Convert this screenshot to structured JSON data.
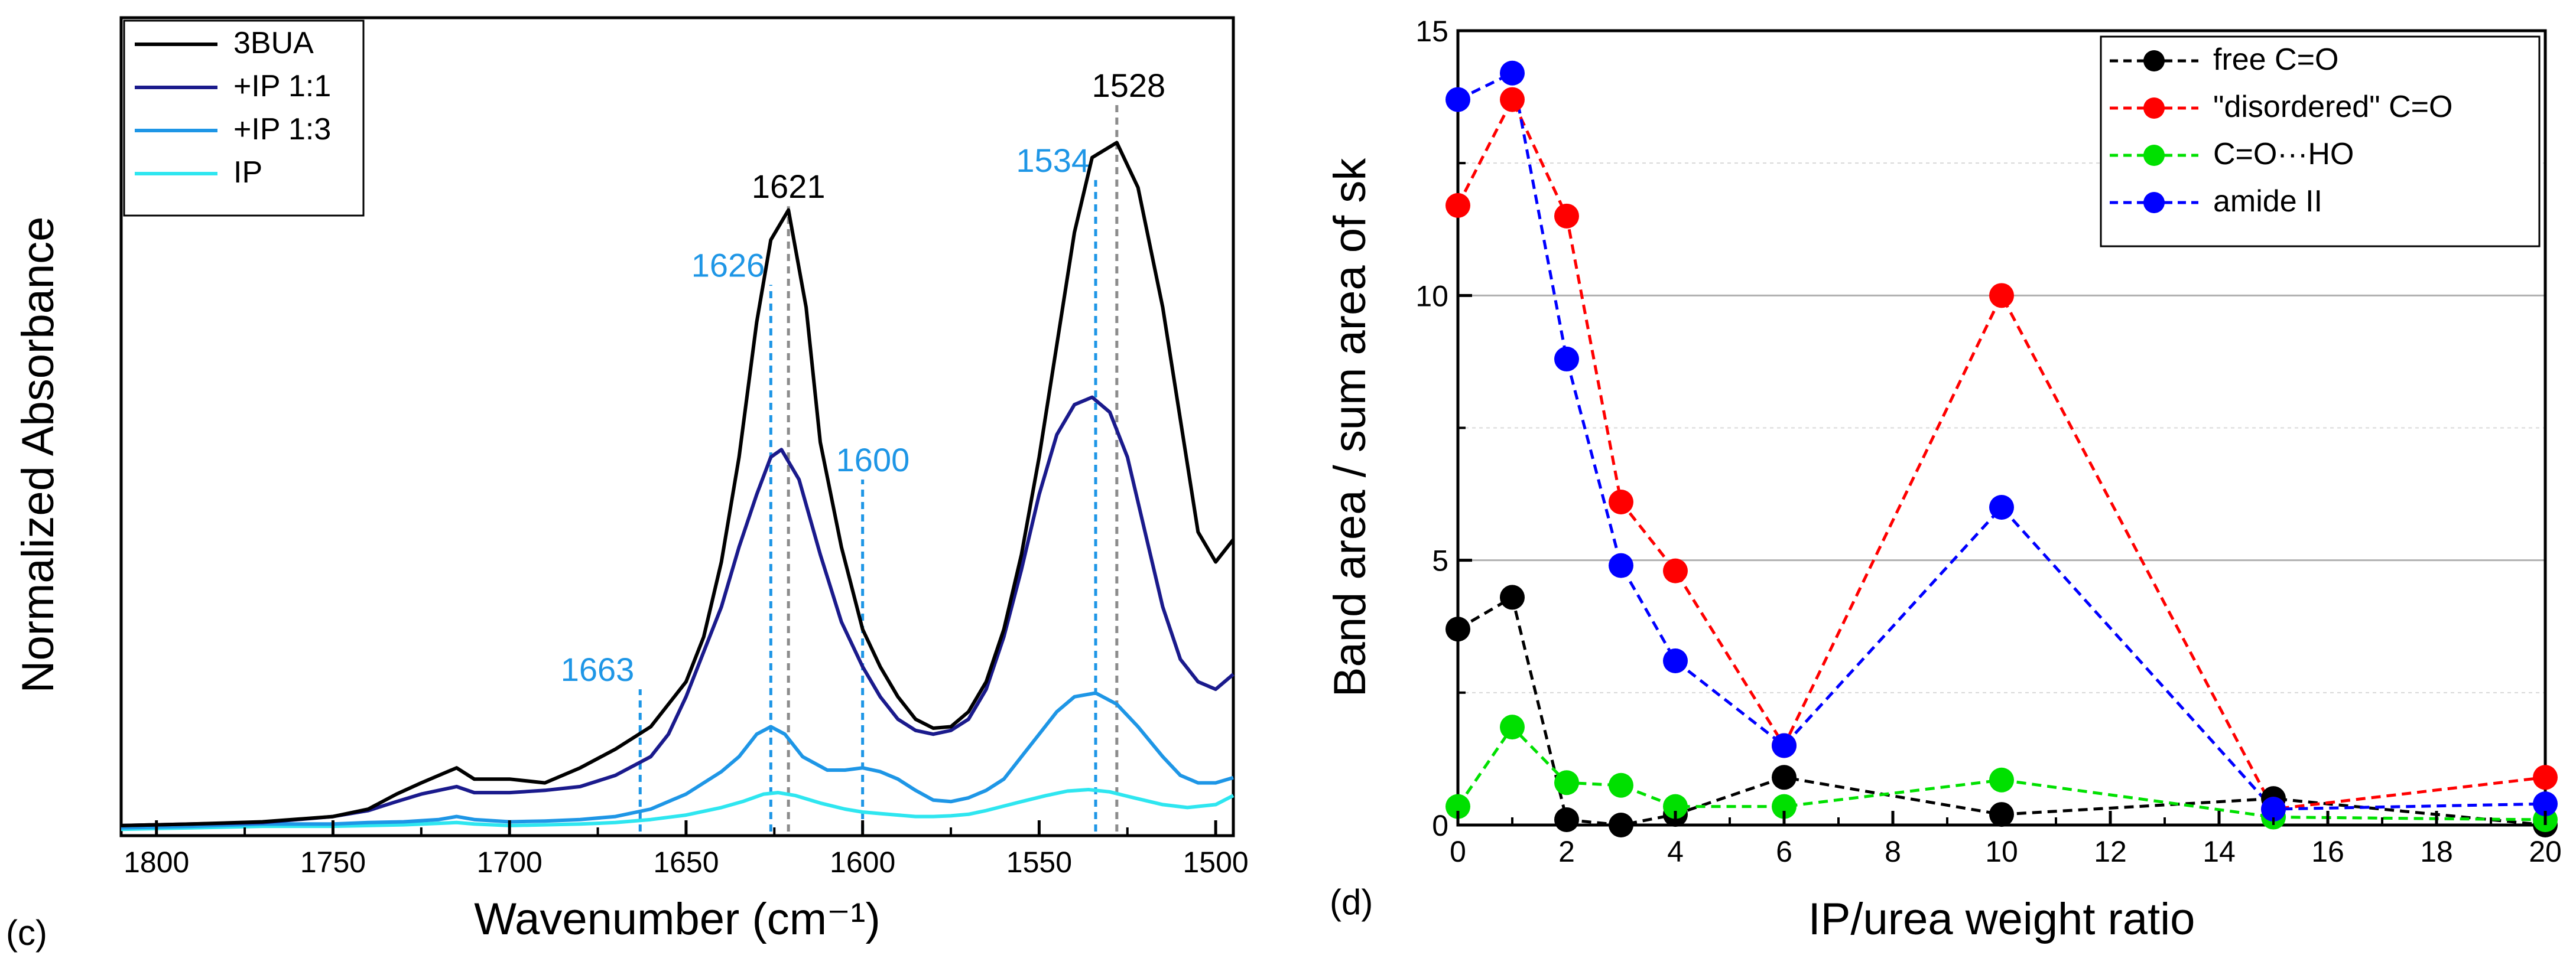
{
  "chart_data": [
    {
      "type": "line",
      "panel_label": "(c)",
      "xlabel": "Wavenumber (cm⁻¹)",
      "ylabel": "Normalized Absorbance",
      "xlim": [
        1810,
        1495
      ],
      "ylim": [
        0,
        1.0
      ],
      "x_ticks": [
        1800,
        1750,
        1700,
        1650,
        1600,
        1550,
        1500
      ],
      "x_tick_labels": [
        "1800",
        "1750",
        "1700",
        "1650",
        "1600",
        "1550",
        "1500"
      ],
      "legend": {
        "position": "top-left",
        "entries": [
          "3BUA",
          "+IP 1:1",
          "+IP 1:3",
          "IP"
        ]
      },
      "series": [
        {
          "name": "3BUA",
          "color": "#000000",
          "points": [
            [
              1810,
              0.008
            ],
            [
              1790,
              0.01
            ],
            [
              1770,
              0.013
            ],
            [
              1750,
              0.02
            ],
            [
              1740,
              0.03
            ],
            [
              1732,
              0.05
            ],
            [
              1725,
              0.065
            ],
            [
              1720,
              0.075
            ],
            [
              1715,
              0.085
            ],
            [
              1710,
              0.07
            ],
            [
              1700,
              0.07
            ],
            [
              1690,
              0.065
            ],
            [
              1680,
              0.085
            ],
            [
              1670,
              0.11
            ],
            [
              1660,
              0.14
            ],
            [
              1650,
              0.2
            ],
            [
              1645,
              0.26
            ],
            [
              1640,
              0.36
            ],
            [
              1635,
              0.5
            ],
            [
              1630,
              0.68
            ],
            [
              1626,
              0.79
            ],
            [
              1621,
              0.83
            ],
            [
              1616,
              0.7
            ],
            [
              1612,
              0.52
            ],
            [
              1606,
              0.38
            ],
            [
              1600,
              0.27
            ],
            [
              1595,
              0.22
            ],
            [
              1590,
              0.18
            ],
            [
              1585,
              0.15
            ],
            [
              1580,
              0.138
            ],
            [
              1575,
              0.14
            ],
            [
              1570,
              0.16
            ],
            [
              1565,
              0.2
            ],
            [
              1560,
              0.27
            ],
            [
              1555,
              0.37
            ],
            [
              1550,
              0.5
            ],
            [
              1545,
              0.65
            ],
            [
              1540,
              0.8
            ],
            [
              1535,
              0.9
            ],
            [
              1528,
              0.92
            ],
            [
              1522,
              0.86
            ],
            [
              1515,
              0.7
            ],
            [
              1510,
              0.55
            ],
            [
              1505,
              0.4
            ],
            [
              1500,
              0.36
            ],
            [
              1495,
              0.39
            ]
          ]
        },
        {
          "name": "+IP 1:1",
          "color": "#1a1a8c",
          "points": [
            [
              1810,
              0.008
            ],
            [
              1790,
              0.01
            ],
            [
              1770,
              0.012
            ],
            [
              1750,
              0.02
            ],
            [
              1740,
              0.028
            ],
            [
              1732,
              0.04
            ],
            [
              1725,
              0.05
            ],
            [
              1715,
              0.06
            ],
            [
              1710,
              0.052
            ],
            [
              1700,
              0.052
            ],
            [
              1690,
              0.055
            ],
            [
              1680,
              0.06
            ],
            [
              1670,
              0.075
            ],
            [
              1660,
              0.1
            ],
            [
              1655,
              0.13
            ],
            [
              1650,
              0.18
            ],
            [
              1645,
              0.24
            ],
            [
              1640,
              0.3
            ],
            [
              1635,
              0.38
            ],
            [
              1630,
              0.45
            ],
            [
              1626,
              0.5
            ],
            [
              1623,
              0.51
            ],
            [
              1618,
              0.47
            ],
            [
              1612,
              0.37
            ],
            [
              1606,
              0.28
            ],
            [
              1600,
              0.22
            ],
            [
              1595,
              0.18
            ],
            [
              1590,
              0.15
            ],
            [
              1585,
              0.135
            ],
            [
              1580,
              0.13
            ],
            [
              1575,
              0.135
            ],
            [
              1570,
              0.15
            ],
            [
              1565,
              0.19
            ],
            [
              1560,
              0.26
            ],
            [
              1555,
              0.35
            ],
            [
              1550,
              0.45
            ],
            [
              1545,
              0.53
            ],
            [
              1540,
              0.57
            ],
            [
              1535,
              0.58
            ],
            [
              1530,
              0.56
            ],
            [
              1525,
              0.5
            ],
            [
              1520,
              0.4
            ],
            [
              1515,
              0.3
            ],
            [
              1510,
              0.23
            ],
            [
              1505,
              0.2
            ],
            [
              1500,
              0.19
            ],
            [
              1495,
              0.21
            ]
          ]
        },
        {
          "name": "+IP 1:3",
          "color": "#1e96e6",
          "points": [
            [
              1810,
              0.005
            ],
            [
              1790,
              0.007
            ],
            [
              1770,
              0.01
            ],
            [
              1750,
              0.01
            ],
            [
              1740,
              0.012
            ],
            [
              1730,
              0.013
            ],
            [
              1720,
              0.016
            ],
            [
              1715,
              0.02
            ],
            [
              1710,
              0.016
            ],
            [
              1700,
              0.013
            ],
            [
              1690,
              0.014
            ],
            [
              1680,
              0.016
            ],
            [
              1670,
              0.02
            ],
            [
              1660,
              0.03
            ],
            [
              1650,
              0.05
            ],
            [
              1640,
              0.08
            ],
            [
              1635,
              0.1
            ],
            [
              1630,
              0.13
            ],
            [
              1626,
              0.14
            ],
            [
              1622,
              0.13
            ],
            [
              1617,
              0.1
            ],
            [
              1610,
              0.082
            ],
            [
              1605,
              0.082
            ],
            [
              1600,
              0.085
            ],
            [
              1595,
              0.08
            ],
            [
              1590,
              0.07
            ],
            [
              1585,
              0.055
            ],
            [
              1580,
              0.042
            ],
            [
              1575,
              0.04
            ],
            [
              1570,
              0.045
            ],
            [
              1565,
              0.055
            ],
            [
              1560,
              0.07
            ],
            [
              1555,
              0.1
            ],
            [
              1550,
              0.13
            ],
            [
              1545,
              0.16
            ],
            [
              1540,
              0.18
            ],
            [
              1534,
              0.185
            ],
            [
              1528,
              0.17
            ],
            [
              1522,
              0.14
            ],
            [
              1515,
              0.1
            ],
            [
              1510,
              0.075
            ],
            [
              1505,
              0.065
            ],
            [
              1500,
              0.065
            ],
            [
              1495,
              0.072
            ]
          ]
        },
        {
          "name": "IP",
          "color": "#2ee6f0",
          "points": [
            [
              1810,
              0.003
            ],
            [
              1790,
              0.005
            ],
            [
              1770,
              0.007
            ],
            [
              1750,
              0.007
            ],
            [
              1740,
              0.008
            ],
            [
              1730,
              0.009
            ],
            [
              1720,
              0.011
            ],
            [
              1715,
              0.012
            ],
            [
              1710,
              0.01
            ],
            [
              1700,
              0.008
            ],
            [
              1690,
              0.009
            ],
            [
              1680,
              0.01
            ],
            [
              1670,
              0.012
            ],
            [
              1660,
              0.016
            ],
            [
              1650,
              0.022
            ],
            [
              1640,
              0.032
            ],
            [
              1634,
              0.04
            ],
            [
              1628,
              0.05
            ],
            [
              1624,
              0.052
            ],
            [
              1619,
              0.048
            ],
            [
              1612,
              0.038
            ],
            [
              1605,
              0.03
            ],
            [
              1600,
              0.026
            ],
            [
              1595,
              0.024
            ],
            [
              1590,
              0.022
            ],
            [
              1585,
              0.02
            ],
            [
              1580,
              0.02
            ],
            [
              1575,
              0.021
            ],
            [
              1570,
              0.023
            ],
            [
              1565,
              0.028
            ],
            [
              1560,
              0.034
            ],
            [
              1555,
              0.04
            ],
            [
              1548,
              0.048
            ],
            [
              1542,
              0.054
            ],
            [
              1536,
              0.056
            ],
            [
              1530,
              0.053
            ],
            [
              1524,
              0.046
            ],
            [
              1515,
              0.036
            ],
            [
              1508,
              0.032
            ],
            [
              1500,
              0.036
            ],
            [
              1495,
              0.048
            ]
          ]
        }
      ],
      "annotations": [
        {
          "label": "1528",
          "x": 1528,
          "line_top": 0.97,
          "style": "black"
        },
        {
          "label": "1621",
          "x": 1621,
          "line_top": 0.835,
          "style": "black"
        },
        {
          "label": "1534",
          "x": 1534,
          "line_top": 0.87,
          "style": "blue"
        },
        {
          "label": "1626",
          "x": 1626,
          "line_top": 0.73,
          "style": "blue"
        },
        {
          "label": "1600",
          "x": 1600,
          "line_top": 0.47,
          "style": "blue"
        },
        {
          "label": "1663",
          "x": 1663,
          "line_top": 0.19,
          "style": "blue"
        }
      ]
    },
    {
      "type": "line",
      "panel_label": "(d)",
      "xlabel": "IP/urea weight ratio",
      "ylabel": "Band area / sum area of sk",
      "xlim": [
        0,
        20
      ],
      "ylim": [
        0,
        15
      ],
      "x_ticks": [
        0,
        2,
        4,
        6,
        8,
        10,
        12,
        14,
        16,
        18,
        20
      ],
      "x_tick_labels": [
        "0",
        "2",
        "4",
        "6",
        "8",
        "10",
        "12",
        "14",
        "16",
        "18",
        "20"
      ],
      "y_ticks": [
        0,
        5,
        10,
        15
      ],
      "y_tick_labels": [
        "0",
        "5",
        "10",
        "15"
      ],
      "grid": true,
      "legend": {
        "position": "top-right",
        "entries": [
          "free C=O",
          "\"disordered\" C=O",
          "C=O···HO",
          "amide II"
        ]
      },
      "x": [
        0,
        1,
        2,
        3,
        4,
        6,
        10,
        15,
        20
      ],
      "series": [
        {
          "name": "free C=O",
          "color": "#000000",
          "values": [
            3.7,
            4.3,
            0.1,
            0.0,
            0.2,
            0.9,
            0.2,
            0.5,
            0.0
          ]
        },
        {
          "name": "\"disordered\" C=O",
          "color": "#ff0000",
          "values": [
            11.7,
            13.7,
            11.5,
            6.1,
            4.8,
            1.5,
            10.0,
            0.3,
            0.9
          ]
        },
        {
          "name": "C=O···HO",
          "color": "#00e000",
          "values": [
            0.35,
            1.85,
            0.8,
            0.75,
            0.35,
            0.35,
            0.85,
            0.15,
            0.1
          ]
        },
        {
          "name": "amide II",
          "color": "#0000ff",
          "values": [
            13.7,
            14.2,
            8.8,
            4.9,
            3.1,
            1.5,
            6.0,
            0.3,
            0.4
          ]
        }
      ]
    }
  ]
}
